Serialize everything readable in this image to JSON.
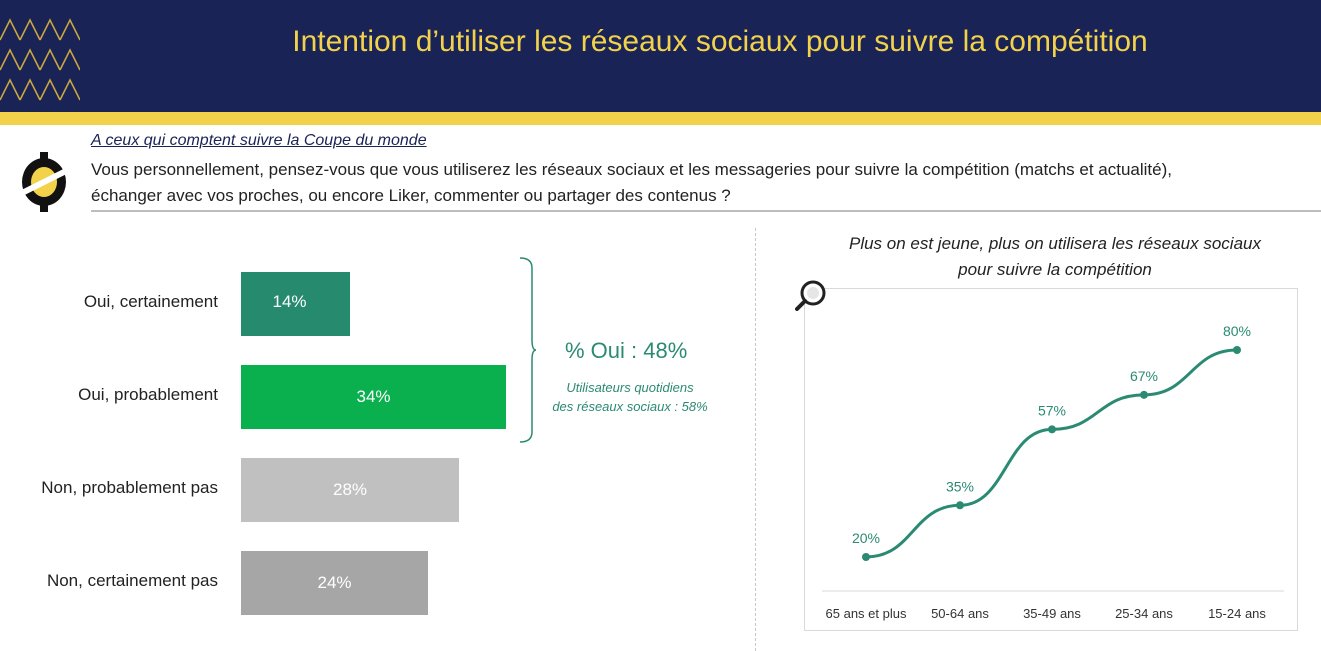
{
  "header": {
    "title": "Intention d’utiliser les réseaux sociaux pour suivre la compétition",
    "bg_color": "#1a2356",
    "accent_color": "#f2d24b"
  },
  "question": {
    "subtitle": "A ceux qui comptent suivre la Coupe du monde",
    "line1": "Vous personnellement, pensez-vous que vous utiliserez les réseaux sociaux et les messageries pour suivre la compétition (matchs et actualité),",
    "line2": "échanger avec vos proches, ou encore Liker, commenter ou partager des contenus ?"
  },
  "summary": {
    "oui_total": "% Oui : 48%",
    "note_line1": "Utilisateurs quotidiens",
    "note_line2": "des réseaux sociaux : 58%",
    "color": "#2b8a72"
  },
  "line_chart_title": {
    "line1": "Plus on est jeune, plus on utilisera les réseaux sociaux",
    "line2": "pour suivre la compétition"
  },
  "chart_data": [
    {
      "type": "bar",
      "orientation": "horizontal",
      "categories": [
        "Oui, certainement",
        "Oui, probablement",
        "Non, probablement pas",
        "Non, certainement pas"
      ],
      "values": [
        14,
        34,
        28,
        24
      ],
      "labels": [
        "14%",
        "34%",
        "28%",
        "24%"
      ],
      "colors": [
        "#268a6e",
        "#0ab04e",
        "#c0c0c0",
        "#a6a6a6"
      ],
      "xlim": [
        0,
        34
      ],
      "grid": false
    },
    {
      "type": "line",
      "title": "Plus on est jeune, plus on utilisera les réseaux sociaux pour suivre la compétition",
      "categories": [
        "65 ans et plus",
        "50-64 ans",
        "35-49 ans",
        "25-34 ans",
        "15-24 ans"
      ],
      "values": [
        20,
        35,
        57,
        67,
        80
      ],
      "labels": [
        "20%",
        "35%",
        "57%",
        "67%",
        "80%"
      ],
      "color": "#2b8a72",
      "ylim": [
        0,
        100
      ],
      "grid": false
    }
  ]
}
